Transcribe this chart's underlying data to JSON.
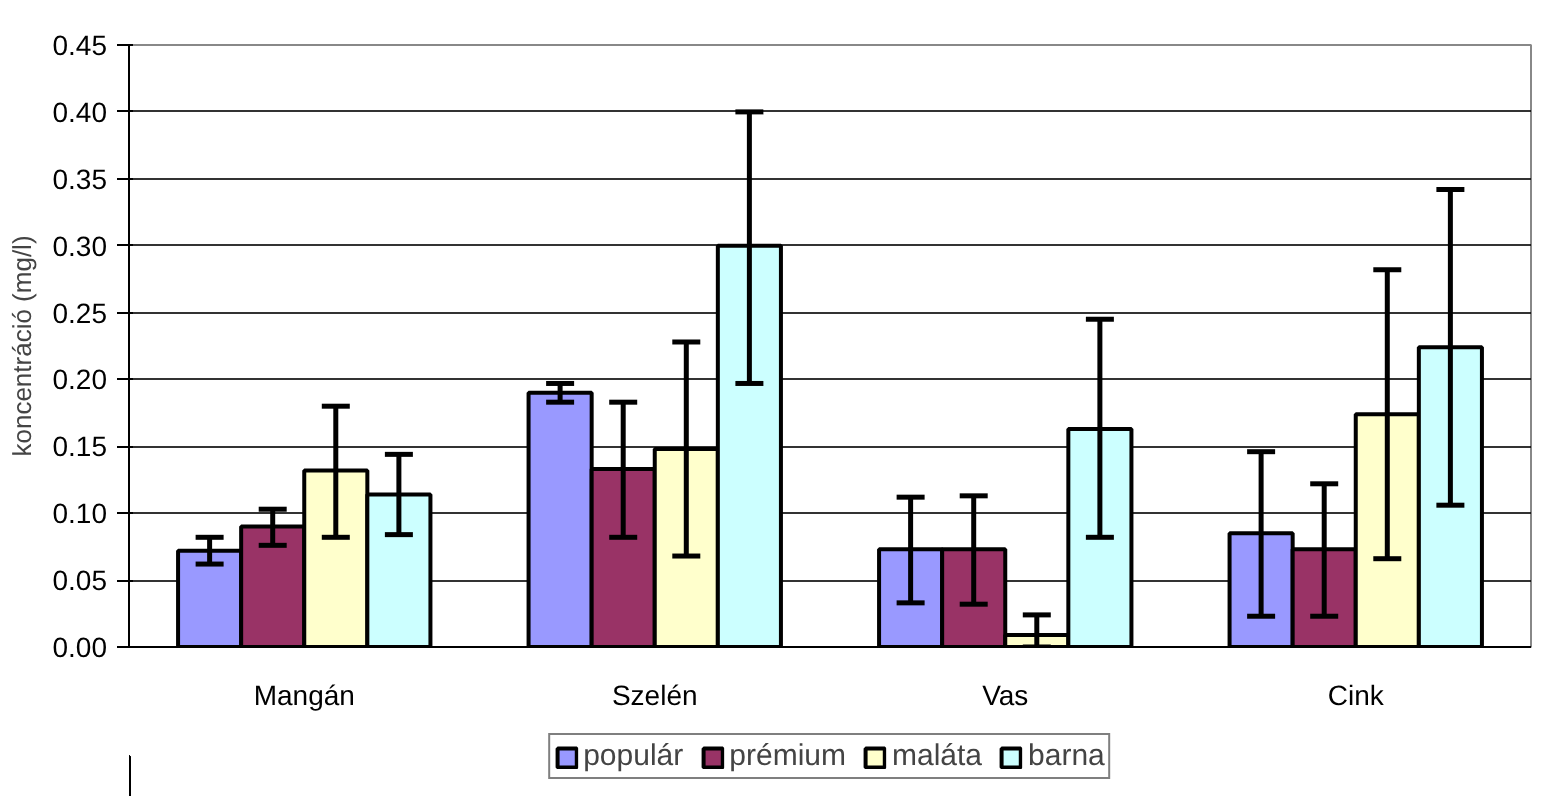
{
  "chart_data": {
    "type": "bar",
    "ylabel": "koncentráció (mg/l)",
    "categories": [
      "Mangán",
      "Szelén",
      "Vas",
      "Cink"
    ],
    "series": [
      {
        "name": "populár",
        "color": "#9999ff",
        "values": [
          0.072,
          0.19,
          0.073,
          0.085
        ],
        "errors": [
          [
            0.062,
            0.082
          ],
          [
            0.183,
            0.197
          ],
          [
            0.033,
            0.112
          ],
          [
            0.023,
            0.146
          ]
        ]
      },
      {
        "name": "prémium",
        "color": "#993366",
        "values": [
          0.09,
          0.133,
          0.073,
          0.073
        ],
        "errors": [
          [
            0.076,
            0.103
          ],
          [
            0.082,
            0.183
          ],
          [
            0.032,
            0.113
          ],
          [
            0.023,
            0.122
          ]
        ]
      },
      {
        "name": "maláta",
        "color": "#ffffcc",
        "values": [
          0.132,
          0.148,
          0.009,
          0.174
        ],
        "errors": [
          [
            0.082,
            0.18
          ],
          [
            0.068,
            0.228
          ],
          [
            0,
            0.024
          ],
          [
            0.066,
            0.282
          ]
        ]
      },
      {
        "name": "barna",
        "color": "#ccffff",
        "values": [
          0.114,
          0.3,
          0.163,
          0.224
        ],
        "errors": [
          [
            0.084,
            0.144
          ],
          [
            0.197,
            0.4
          ],
          [
            0.082,
            0.245
          ],
          [
            0.106,
            0.342
          ]
        ]
      }
    ],
    "ylim": [
      0,
      0.45
    ],
    "yticks": [
      {
        "value": 0,
        "label": "0.00"
      },
      {
        "value": 0.05,
        "label": "0.05"
      },
      {
        "value": 0.1,
        "label": "0.10"
      },
      {
        "value": 0.15,
        "label": "0.15"
      },
      {
        "value": 0.2,
        "label": "0.20"
      },
      {
        "value": 0.25,
        "label": "0.25"
      },
      {
        "value": 0.3,
        "label": "0.30"
      },
      {
        "value": 0.35,
        "label": "0.35"
      },
      {
        "value": 0.4,
        "label": "0.40"
      },
      {
        "value": 0.45,
        "label": "0.45"
      }
    ],
    "grid": "y",
    "legend": "bottom"
  }
}
